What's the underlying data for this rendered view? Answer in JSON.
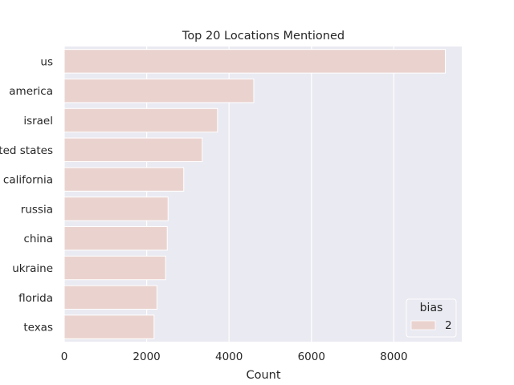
{
  "chart_data": {
    "type": "bar",
    "orientation": "horizontal",
    "title": "Top 20 Locations Mentioned",
    "xlabel": "Count",
    "ylabel": "",
    "categories": [
      "us",
      "america",
      "israel",
      "united states",
      "california",
      "russia",
      "china",
      "ukraine",
      "florida",
      "texas"
    ],
    "category_tick_labels": [
      "us",
      "america",
      "israel",
      "ted states",
      "california",
      "russia",
      "china",
      "ukraine",
      "florida",
      "texas"
    ],
    "series": [
      {
        "name": "2",
        "values": [
          9250,
          4600,
          3720,
          3350,
          2900,
          2520,
          2500,
          2460,
          2250,
          2180
        ]
      }
    ],
    "xlim": [
      0,
      9650
    ],
    "xticks": [
      0,
      2000,
      4000,
      6000,
      8000
    ],
    "xtick_labels": [
      "0",
      "2000",
      "4000",
      "6000",
      "8000"
    ],
    "grid": true,
    "legend": {
      "title": "bias",
      "placement": "lower-right",
      "entries": [
        "2"
      ]
    },
    "colors": {
      "bar_fill": "#ead3cf",
      "background": "#eaeaf2",
      "grid": "#ffffff"
    }
  }
}
